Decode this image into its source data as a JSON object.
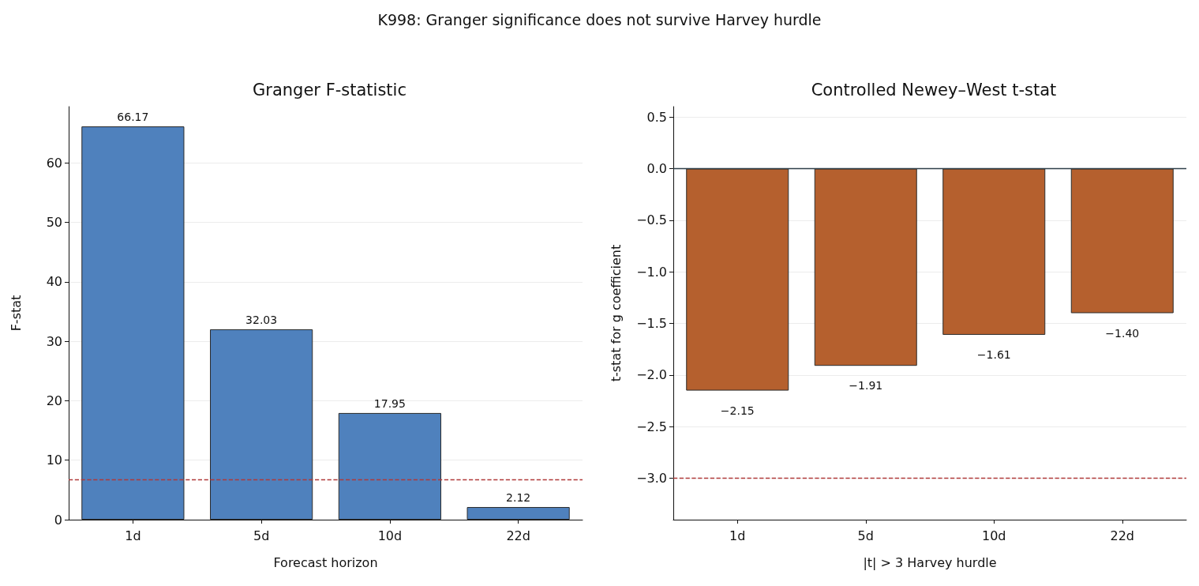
{
  "chart_data": [
    {
      "type": "bar",
      "title": "Granger F-statistic",
      "xlabel": "Forecast horizon",
      "ylabel": "F-stat",
      "annotations": [
        "K998: Granger significance does not survive Harvey hurdle"
      ],
      "categories": [
        "1d",
        "5d",
        "10d",
        "22d"
      ],
      "values": [
        66.17,
        32.03,
        17.95,
        2.12
      ],
      "color": "#4f81bd",
      "ylim": [
        0,
        69.5
      ],
      "yticks": [
        0,
        10,
        20,
        30,
        40,
        50,
        60
      ],
      "grid": "y",
      "data_labels": true,
      "ref_lines": [
        {
          "axis": "y",
          "value": 6.7,
          "color": "#b03a3a",
          "line_style": "dashed"
        }
      ]
    },
    {
      "type": "bar",
      "title": "Controlled Newey–West t-stat",
      "xlabel": "|t| > 3 Harvey hurdle",
      "ylabel": "t-stat for g coefficient",
      "categories": [
        "1d",
        "5d",
        "10d",
        "22d"
      ],
      "values": [
        -2.15,
        -1.91,
        -1.61,
        -1.4
      ],
      "value_labels": [
        "−2.15",
        "−1.91",
        "−1.61",
        "−1.40"
      ],
      "color": "#b5602e",
      "ylim": [
        -3.4,
        0.6
      ],
      "yticks": [
        {
          "value": -3.0,
          "label": "−3.0"
        },
        {
          "value": -2.5,
          "label": "−2.5"
        },
        {
          "value": -2.0,
          "label": "−2.0"
        },
        {
          "value": -1.5,
          "label": "−1.5"
        },
        {
          "value": -1.0,
          "label": "−1.0"
        },
        {
          "value": -0.5,
          "label": "−0.5"
        },
        {
          "value": 0,
          "label": "0.0"
        },
        {
          "value": 0.5,
          "label": "0.5"
        }
      ],
      "grid": "y",
      "ref_lines": [
        {
          "axis": "y",
          "value": 0,
          "color": "#2f3f4a",
          "line_style": "solid"
        },
        {
          "axis": "y",
          "value": -3.0,
          "color": "#b03a3a",
          "line_style": "dashed"
        }
      ]
    }
  ]
}
